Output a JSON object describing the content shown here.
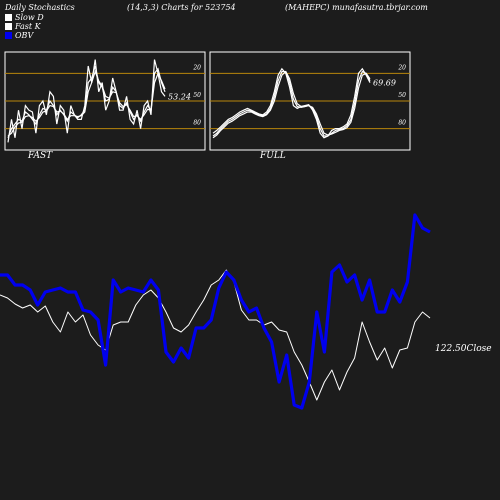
{
  "header": {
    "left": "Daily Stochastics",
    "mid": "(14,3,3) Charts for 523754",
    "right": "(MAHEPC) munafasutra.tbrjar.com"
  },
  "legend": [
    {
      "label": "Slow  D",
      "color": "#ffffff"
    },
    {
      "label": "Fast K",
      "color": "#ffffff"
    },
    {
      "label": "OBV",
      "color": "#0000ee"
    }
  ],
  "chart_data": [
    {
      "type": "line",
      "name": "FAST",
      "title": "FAST",
      "ylim": [
        0,
        100
      ],
      "levels": [
        20,
        50,
        80
      ],
      "ticks": [
        "80",
        "50",
        "20"
      ],
      "last_value_label": "53.24",
      "series": [
        {
          "values": [
            5,
            30,
            10,
            40,
            20,
            45,
            40,
            38,
            15,
            45,
            50,
            35,
            60,
            55,
            25,
            45,
            40,
            15,
            45,
            35,
            30,
            30,
            45,
            88,
            70,
            95,
            60,
            70,
            40,
            50,
            75,
            60,
            40,
            40,
            55,
            30,
            25,
            40,
            20,
            45,
            50,
            35,
            95,
            80,
            60,
            55
          ]
        },
        {
          "values": [
            10,
            20,
            25,
            30,
            28,
            38,
            35,
            30,
            25,
            35,
            42,
            40,
            50,
            45,
            35,
            40,
            35,
            28,
            38,
            35,
            32,
            35,
            40,
            70,
            75,
            88,
            70,
            65,
            50,
            52,
            65,
            60,
            45,
            42,
            48,
            38,
            30,
            35,
            28,
            38,
            45,
            40,
            80,
            85,
            70,
            60
          ]
        },
        {
          "values": [
            12,
            15,
            22,
            26,
            27,
            33,
            34,
            32,
            28,
            32,
            38,
            39,
            45,
            44,
            38,
            39,
            36,
            30,
            34,
            34,
            33,
            34,
            38,
            60,
            70,
            82,
            72,
            66,
            55,
            53,
            60,
            59,
            48,
            44,
            46,
            40,
            33,
            34,
            30,
            35,
            41,
            40,
            70,
            80,
            72,
            63
          ]
        }
      ]
    },
    {
      "type": "line",
      "name": "FULL",
      "title": "FULL",
      "ylim": [
        0,
        100
      ],
      "levels": [
        20,
        50,
        80
      ],
      "ticks": [
        "80",
        "50",
        "20"
      ],
      "last_value_label": "69.69",
      "series": [
        {
          "values": [
            15,
            18,
            22,
            26,
            30,
            32,
            35,
            38,
            40,
            42,
            40,
            38,
            36,
            35,
            38,
            45,
            60,
            78,
            85,
            80,
            65,
            45,
            42,
            44,
            45,
            46,
            40,
            30,
            15,
            10,
            12,
            18,
            20,
            20,
            22,
            25,
            35,
            55,
            80,
            85,
            78,
            70
          ]
        },
        {
          "values": [
            12,
            15,
            20,
            24,
            28,
            30,
            33,
            36,
            38,
            40,
            39,
            37,
            35,
            34,
            36,
            42,
            55,
            72,
            82,
            82,
            70,
            52,
            44,
            43,
            44,
            45,
            42,
            33,
            20,
            12,
            12,
            15,
            18,
            19,
            20,
            23,
            30,
            48,
            72,
            82,
            80,
            72
          ]
        },
        {
          "values": [
            10,
            13,
            18,
            22,
            26,
            28,
            31,
            34,
            36,
            38,
            38,
            36,
            34,
            33,
            35,
            40,
            50,
            66,
            78,
            82,
            74,
            58,
            47,
            44,
            44,
            45,
            43,
            36,
            25,
            15,
            13,
            14,
            16,
            18,
            19,
            21,
            27,
            42,
            64,
            78,
            80,
            74
          ]
        }
      ]
    },
    {
      "type": "line",
      "name": "Price/OBV",
      "close_label": "122.50Close",
      "price": {
        "values": [
          145,
          142,
          136,
          132,
          135,
          128,
          134,
          118,
          108,
          128,
          118,
          125,
          105,
          95,
          90,
          115,
          118,
          118,
          135,
          145,
          150,
          142,
          128,
          112,
          108,
          115,
          128,
          140,
          155,
          160,
          170,
          158,
          130,
          120,
          120,
          115,
          118,
          110,
          108,
          88,
          75,
          58,
          40,
          58,
          70,
          50,
          68,
          82,
          118,
          98,
          80,
          92,
          72,
          90,
          92,
          118,
          128,
          122
        ]
      },
      "obv": {
        "values": [
          165,
          165,
          155,
          155,
          150,
          135,
          148,
          150,
          152,
          148,
          148,
          130,
          128,
          120,
          75,
          160,
          148,
          152,
          150,
          148,
          160,
          150,
          88,
          78,
          92,
          82,
          112,
          112,
          120,
          152,
          168,
          160,
          140,
          128,
          132,
          112,
          98,
          58,
          85,
          35,
          32,
          58,
          128,
          88,
          168,
          175,
          158,
          165,
          140,
          160,
          128,
          128,
          150,
          138,
          158,
          225,
          212,
          208
        ]
      }
    }
  ]
}
